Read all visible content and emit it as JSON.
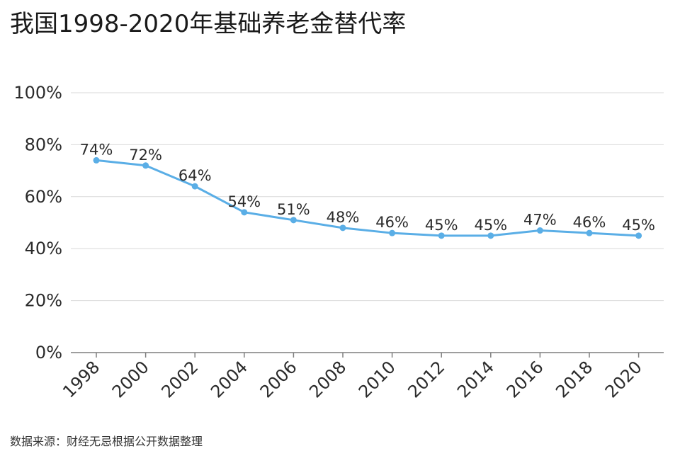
{
  "chart_data": {
    "type": "line",
    "title": "我国1998-2020年基础养老金替代率",
    "source": "数据来源：财经无忌根据公开数据整理",
    "xlabel": "",
    "ylabel": "",
    "x": [
      "1998",
      "2000",
      "2002",
      "2004",
      "2006",
      "2008",
      "2010",
      "2012",
      "2014",
      "2016",
      "2018",
      "2020"
    ],
    "series": [
      {
        "values": [
          74,
          72,
          64,
          54,
          51,
          48,
          46,
          45,
          45,
          47,
          46,
          45
        ],
        "labels": [
          "74%",
          "72%",
          "64%",
          "54%",
          "51%",
          "48%",
          "46%",
          "45%",
          "45%",
          "47%",
          "46%",
          "45%"
        ],
        "color": "#5aaee6"
      }
    ],
    "ylim": [
      0,
      100
    ],
    "yticks": [
      "0%",
      "20%",
      "40%",
      "60%",
      "80%",
      "100%"
    ],
    "ytick_values": [
      0,
      20,
      40,
      60,
      80,
      100
    ],
    "grid": true,
    "legend": "none",
    "grid_color": "#d9d9d9",
    "axis_color": "#7f7f7f"
  }
}
